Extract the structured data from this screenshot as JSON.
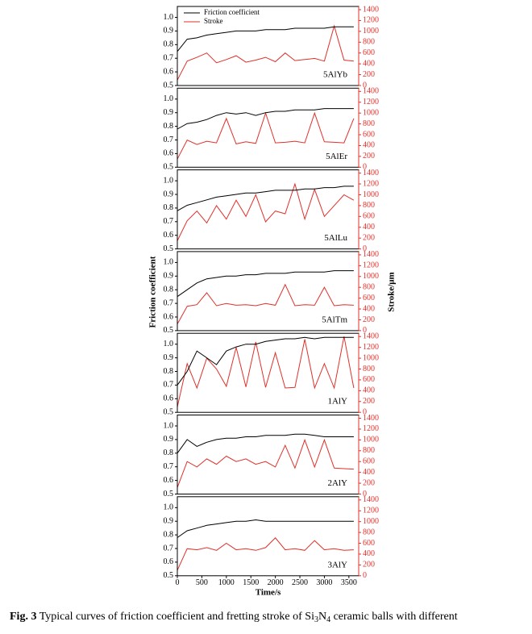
{
  "figure": {
    "ylabel": "Friction coefficient",
    "y2label": "Stroke/μm",
    "caption": {
      "label": "Fig. 3",
      "text": " Typical curves of friction coefficient and fretting stroke of Si",
      "sub1": "3",
      "mid": "N",
      "sub2": "4",
      "end": " ceramic balls with different"
    }
  },
  "chart_data": [
    {
      "type": "line",
      "annotation": "5AlYb",
      "legend": "upper left",
      "x": [
        0,
        200,
        400,
        600,
        800,
        1000,
        1200,
        1400,
        1600,
        1800,
        2000,
        2200,
        2400,
        2600,
        2800,
        3000,
        3200,
        3400,
        3600
      ],
      "series": [
        {
          "name": "Friction coefficient",
          "color": "#000000",
          "values": [
            0.75,
            0.84,
            0.85,
            0.87,
            0.88,
            0.89,
            0.9,
            0.9,
            0.9,
            0.91,
            0.91,
            0.91,
            0.92,
            0.92,
            0.92,
            0.92,
            0.93,
            0.93,
            0.93
          ]
        },
        {
          "name": "Stroke",
          "color": "#e0302a",
          "axis": "y2",
          "values": [
            100,
            450,
            520,
            600,
            420,
            480,
            550,
            430,
            470,
            520,
            440,
            600,
            460,
            480,
            500,
            450,
            1100,
            470,
            450
          ]
        }
      ],
      "ylim": [
        0.5,
        1.08
      ],
      "yticks": [
        0.5,
        0.6,
        0.7,
        0.8,
        0.9,
        {
          "value": 1.0,
          "label": "1.0"
        }
      ],
      "y2lim": [
        0,
        1460
      ],
      "y2ticks": [
        0,
        200,
        400,
        600,
        800,
        1000,
        1200,
        1400
      ],
      "xlim": [
        0,
        3700
      ]
    },
    {
      "type": "line",
      "annotation": "5AlEr",
      "x": [
        0,
        200,
        400,
        600,
        800,
        1000,
        1200,
        1400,
        1600,
        1800,
        2000,
        2200,
        2400,
        2600,
        2800,
        3000,
        3200,
        3400,
        3600
      ],
      "series": [
        {
          "name": "Friction coefficient",
          "color": "#000000",
          "values": [
            0.78,
            0.82,
            0.83,
            0.85,
            0.88,
            0.9,
            0.89,
            0.9,
            0.88,
            0.9,
            0.91,
            0.91,
            0.92,
            0.92,
            0.92,
            0.93,
            0.93,
            0.93,
            0.93
          ]
        },
        {
          "name": "Stroke",
          "color": "#e0302a",
          "axis": "y2",
          "values": [
            150,
            500,
            420,
            480,
            450,
            900,
            430,
            470,
            440,
            1000,
            450,
            460,
            480,
            450,
            1000,
            470,
            460,
            450,
            900
          ]
        }
      ],
      "ylim": [
        0.5,
        1.08
      ],
      "yticks": [
        0.5,
        0.6,
        0.7,
        0.8,
        0.9,
        {
          "value": 1.0,
          "label": "1.0"
        }
      ],
      "y2lim": [
        0,
        1460
      ],
      "y2ticks": [
        0,
        200,
        400,
        600,
        800,
        1000,
        1200,
        1400
      ],
      "xlim": [
        0,
        3700
      ]
    },
    {
      "type": "line",
      "annotation": "5AlLu",
      "x": [
        0,
        200,
        400,
        600,
        800,
        1000,
        1200,
        1400,
        1600,
        1800,
        2000,
        2200,
        2400,
        2600,
        2800,
        3000,
        3200,
        3400,
        3600
      ],
      "series": [
        {
          "name": "Friction coefficient",
          "color": "#000000",
          "values": [
            0.78,
            0.82,
            0.84,
            0.86,
            0.88,
            0.89,
            0.9,
            0.91,
            0.91,
            0.92,
            0.93,
            0.93,
            0.93,
            0.94,
            0.94,
            0.95,
            0.95,
            0.96,
            0.96
          ]
        },
        {
          "name": "Stroke",
          "color": "#e0302a",
          "axis": "y2",
          "values": [
            150,
            520,
            700,
            480,
            800,
            550,
            900,
            600,
            1000,
            500,
            700,
            650,
            1200,
            550,
            1100,
            600,
            800,
            1000,
            900
          ]
        }
      ],
      "ylim": [
        0.5,
        1.08
      ],
      "yticks": [
        0.5,
        0.6,
        0.7,
        0.8,
        0.9,
        {
          "value": 1.0,
          "label": "1.0"
        }
      ],
      "y2lim": [
        0,
        1460
      ],
      "y2ticks": [
        0,
        200,
        400,
        600,
        800,
        1000,
        1200,
        1400
      ],
      "xlim": [
        0,
        3700
      ]
    },
    {
      "type": "line",
      "annotation": "5AlTm",
      "x": [
        0,
        200,
        400,
        600,
        800,
        1000,
        1200,
        1400,
        1600,
        1800,
        2000,
        2200,
        2400,
        2600,
        2800,
        3000,
        3200,
        3400,
        3600
      ],
      "series": [
        {
          "name": "Friction coefficient",
          "color": "#000000",
          "values": [
            0.75,
            0.8,
            0.85,
            0.88,
            0.89,
            0.9,
            0.9,
            0.91,
            0.91,
            0.92,
            0.92,
            0.92,
            0.93,
            0.93,
            0.93,
            0.93,
            0.94,
            0.94,
            0.94
          ]
        },
        {
          "name": "Stroke",
          "color": "#e0302a",
          "axis": "y2",
          "values": [
            120,
            450,
            480,
            700,
            460,
            500,
            470,
            480,
            460,
            500,
            470,
            850,
            460,
            480,
            470,
            800,
            460,
            480,
            470
          ]
        }
      ],
      "ylim": [
        0.5,
        1.08
      ],
      "yticks": [
        0.5,
        0.6,
        0.7,
        0.8,
        0.9,
        {
          "value": 1.0,
          "label": "1.0"
        }
      ],
      "y2lim": [
        0,
        1460
      ],
      "y2ticks": [
        0,
        200,
        400,
        600,
        800,
        1000,
        1200,
        1400
      ],
      "xlim": [
        0,
        3700
      ]
    },
    {
      "type": "line",
      "annotation": "1AlY",
      "x": [
        0,
        200,
        400,
        600,
        800,
        1000,
        1200,
        1400,
        1600,
        1800,
        2000,
        2200,
        2400,
        2600,
        2800,
        3000,
        3200,
        3400,
        3600
      ],
      "series": [
        {
          "name": "Friction coefficient",
          "color": "#000000",
          "values": [
            0.7,
            0.8,
            0.95,
            0.9,
            0.85,
            0.95,
            0.98,
            1.0,
            1.0,
            1.02,
            1.03,
            1.04,
            1.04,
            1.05,
            1.04,
            1.05,
            1.05,
            1.05,
            1.05
          ]
        },
        {
          "name": "Stroke",
          "color": "#e0302a",
          "axis": "y2",
          "values": [
            100,
            900,
            450,
            1000,
            800,
            480,
            1200,
            470,
            1300,
            460,
            1100,
            450,
            460,
            1350,
            450,
            900,
            450,
            1400,
            450
          ]
        }
      ],
      "ylim": [
        0.5,
        1.08
      ],
      "yticks": [
        0.5,
        0.6,
        0.7,
        0.8,
        0.9,
        {
          "value": 1.0,
          "label": "1.0"
        }
      ],
      "y2lim": [
        0,
        1460
      ],
      "y2ticks": [
        0,
        200,
        400,
        600,
        800,
        1000,
        1200,
        1400
      ],
      "xlim": [
        0,
        3700
      ]
    },
    {
      "type": "line",
      "annotation": "2AlY",
      "x": [
        0,
        200,
        400,
        600,
        800,
        1000,
        1200,
        1400,
        1600,
        1800,
        2000,
        2200,
        2400,
        2600,
        2800,
        3000,
        3200,
        3400,
        3600
      ],
      "series": [
        {
          "name": "Friction coefficient",
          "color": "#000000",
          "values": [
            0.8,
            0.9,
            0.85,
            0.88,
            0.9,
            0.91,
            0.91,
            0.92,
            0.92,
            0.93,
            0.93,
            0.93,
            0.94,
            0.94,
            0.93,
            0.92,
            0.92,
            0.92,
            0.92
          ]
        },
        {
          "name": "Stroke",
          "color": "#e0302a",
          "axis": "y2",
          "values": [
            120,
            600,
            500,
            650,
            550,
            700,
            600,
            650,
            550,
            600,
            500,
            900,
            480,
            1000,
            500,
            1000,
            480,
            470,
            460
          ]
        }
      ],
      "ylim": [
        0.5,
        1.08
      ],
      "yticks": [
        0.5,
        0.6,
        0.7,
        0.8,
        0.9,
        {
          "value": 1.0,
          "label": "1.0"
        }
      ],
      "y2lim": [
        0,
        1460
      ],
      "y2ticks": [
        0,
        200,
        400,
        600,
        800,
        1000,
        1200,
        1400
      ],
      "xlim": [
        0,
        3700
      ]
    },
    {
      "type": "line",
      "annotation": "3AlY",
      "xlabel": "Time/s",
      "x": [
        0,
        200,
        400,
        600,
        800,
        1000,
        1200,
        1400,
        1600,
        1800,
        2000,
        2200,
        2400,
        2600,
        2800,
        3000,
        3200,
        3400,
        3600
      ],
      "series": [
        {
          "name": "Friction coefficient",
          "color": "#000000",
          "values": [
            0.78,
            0.83,
            0.85,
            0.87,
            0.88,
            0.89,
            0.9,
            0.9,
            0.91,
            0.9,
            0.9,
            0.9,
            0.9,
            0.9,
            0.9,
            0.9,
            0.9,
            0.9,
            0.9
          ]
        },
        {
          "name": "Stroke",
          "color": "#e0302a",
          "axis": "y2",
          "values": [
            100,
            500,
            480,
            520,
            470,
            600,
            480,
            500,
            470,
            520,
            700,
            480,
            500,
            470,
            650,
            480,
            500,
            470,
            480
          ]
        }
      ],
      "ylim": [
        0.5,
        1.08
      ],
      "yticks": [
        0.5,
        0.6,
        0.7,
        0.8,
        0.9,
        {
          "value": 1.0,
          "label": "1.0"
        }
      ],
      "y2lim": [
        0,
        1460
      ],
      "y2ticks": [
        0,
        200,
        400,
        600,
        800,
        1000,
        1200,
        1400
      ],
      "xlim": [
        0,
        3700
      ],
      "xticks": [
        0,
        500,
        1000,
        1500,
        2000,
        2500,
        3000,
        3500
      ]
    }
  ]
}
